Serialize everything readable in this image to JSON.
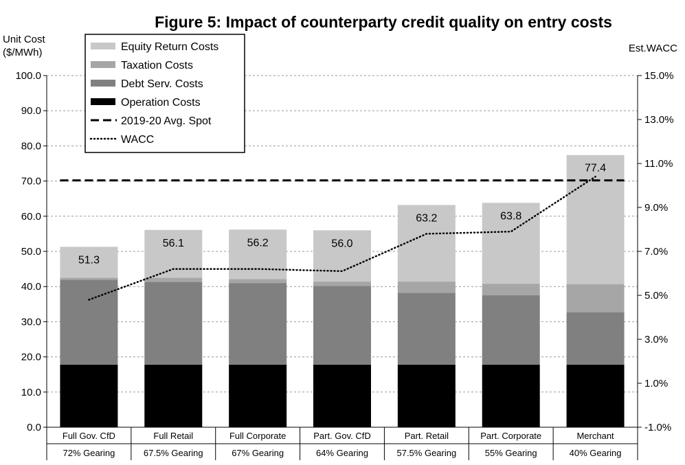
{
  "chart_data": {
    "type": "bar",
    "stacked": true,
    "title": "Figure 5:  Impact of counterparty credit quality on entry costs",
    "ylabel_line1": "Unit Cost",
    "ylabel_line2": "($/MWh)",
    "y2label": "Est.WACC",
    "ylim": [
      0,
      100
    ],
    "yticks": [
      "0.0",
      "10.0",
      "20.0",
      "30.0",
      "40.0",
      "50.0",
      "60.0",
      "70.0",
      "80.0",
      "90.0",
      "100.0"
    ],
    "y2lim": [
      -1.0,
      15.0
    ],
    "y2ticks": [
      "-1.0%",
      "1.0%",
      "3.0%",
      "5.0%",
      "7.0%",
      "9.0%",
      "11.0%",
      "13.0%",
      "15.0%"
    ],
    "grid": true,
    "legend_position": "top-left",
    "categories": [
      "Full Gov. CfD",
      "Full Retail",
      "Full Corporate",
      "Part. Gov. CfD",
      "Part. Retail",
      "Part. Corporate",
      "Merchant"
    ],
    "categories_line2": [
      "72% Gearing",
      "67.5% Gearing",
      "67% Gearing",
      "64% Gearing",
      "57.5% Gearing",
      "55% Gearing",
      "40% Gearing"
    ],
    "series": [
      {
        "name": "Operation Costs",
        "color": "#000000",
        "values": [
          17.8,
          17.8,
          17.8,
          17.8,
          17.8,
          17.8,
          17.8
        ]
      },
      {
        "name": "Debt Serv. Costs",
        "color": "#808080",
        "values": [
          24.1,
          23.5,
          23.2,
          22.4,
          20.4,
          19.7,
          14.9
        ]
      },
      {
        "name": "Taxation Costs",
        "color": "#a6a6a6",
        "values": [
          0.6,
          1.2,
          1.1,
          1.2,
          3.2,
          3.3,
          8.0
        ]
      },
      {
        "name": "Equity Return Costs",
        "color": "#c8c8c8",
        "values": [
          8.8,
          13.6,
          14.1,
          14.6,
          21.8,
          23.0,
          36.7
        ]
      }
    ],
    "totals": [
      "51.3",
      "56.1",
      "56.2",
      "56.0",
      "63.2",
      "63.8",
      "77.4"
    ],
    "spot_line": {
      "name": "2019-20 Avg. Spot",
      "value": 70.2
    },
    "wacc_line": {
      "name": "WACC",
      "values": [
        4.8,
        6.2,
        6.2,
        6.1,
        7.8,
        7.9,
        10.4
      ]
    },
    "legend_order": [
      "Equity Return Costs",
      "Taxation Costs",
      "Debt Serv. Costs",
      "Operation Costs",
      "2019-20 Avg. Spot",
      "WACC"
    ]
  }
}
